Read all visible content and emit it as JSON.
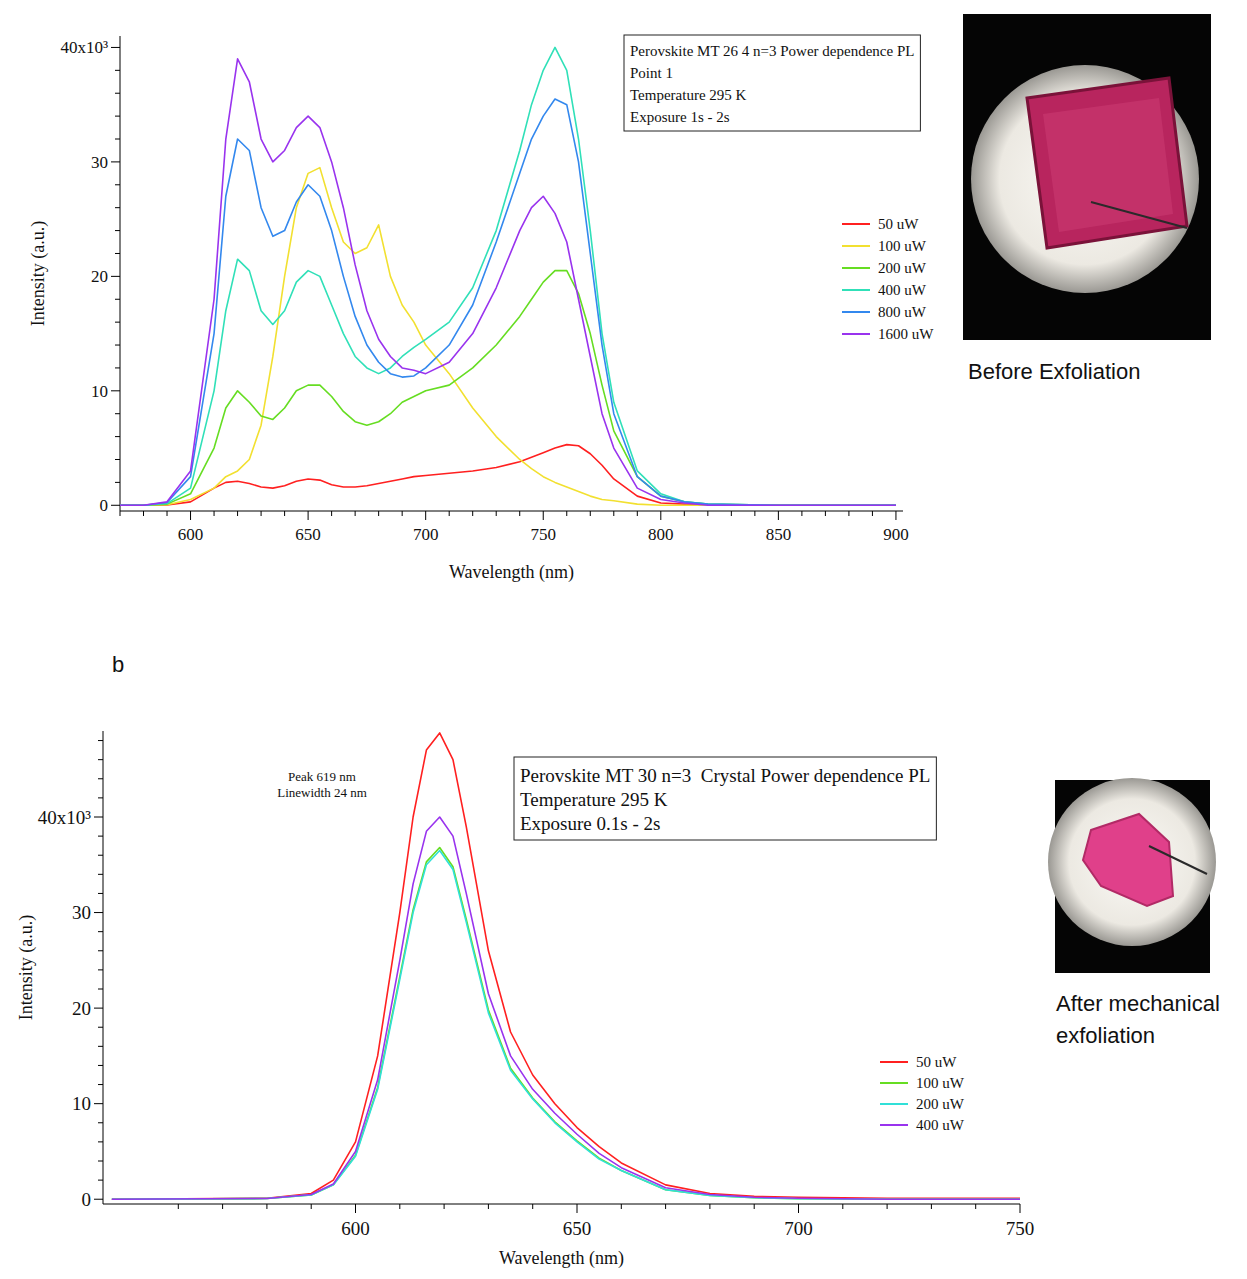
{
  "chart_data": [
    {
      "type": "line",
      "text_box": [
        "Perovskite MT 26 4 n=3 Power dependence PL",
        "Point 1",
        "Temperature 295 K",
        "Exposure 1s - 2s"
      ],
      "x_label": "Wavelength (nm)",
      "y_label": "Intensity (a.u.)",
      "image_caption": "Before Exfoliation",
      "legend": "right",
      "xlim": [
        570,
        903
      ],
      "ylim": [
        -500,
        41000
      ],
      "xticks": [
        600,
        650,
        700,
        750,
        800,
        850,
        900
      ],
      "yticks": [
        0,
        {
          "value": 10000,
          "label": "10"
        },
        {
          "value": 20000,
          "label": "20"
        },
        {
          "value": 30000,
          "label": "30"
        },
        {
          "value": 40000,
          "label": "40x10³"
        }
      ],
      "x": [
        560,
        580,
        590,
        600,
        610,
        615,
        620,
        625,
        630,
        635,
        640,
        645,
        650,
        655,
        660,
        665,
        670,
        675,
        680,
        685,
        690,
        695,
        700,
        710,
        720,
        730,
        740,
        745,
        750,
        755,
        760,
        765,
        770,
        775,
        780,
        790,
        800,
        810,
        820,
        850,
        900
      ],
      "series": [
        {
          "name": "50 uW",
          "color": "#ff2020",
          "values": [
            0,
            0,
            30,
            300,
            1500,
            2000,
            2100,
            1900,
            1600,
            1500,
            1700,
            2100,
            2300,
            2200,
            1800,
            1600,
            1600,
            1700,
            1900,
            2100,
            2300,
            2500,
            2600,
            2800,
            3000,
            3300,
            3800,
            4200,
            4600,
            5000,
            5300,
            5200,
            4500,
            3500,
            2300,
            800,
            200,
            100,
            0,
            0,
            0
          ]
        },
        {
          "name": "100 uW",
          "color": "#f2e030",
          "values": [
            0,
            0,
            50,
            500,
            1500,
            2500,
            3000,
            4000,
            7000,
            13000,
            20000,
            26000,
            29000,
            29500,
            26000,
            23000,
            22000,
            22500,
            24500,
            20000,
            17500,
            16000,
            14000,
            11500,
            8500,
            6000,
            4000,
            3200,
            2500,
            2000,
            1600,
            1200,
            800,
            500,
            400,
            100,
            0,
            0,
            0,
            0,
            0
          ]
        },
        {
          "name": "200 uW",
          "color": "#66dd22",
          "values": [
            0,
            0,
            100,
            1000,
            5000,
            8500,
            10000,
            9000,
            7800,
            7500,
            8500,
            10000,
            10500,
            10500,
            9500,
            8200,
            7300,
            7000,
            7300,
            8000,
            9000,
            9500,
            10000,
            10500,
            12000,
            14000,
            16500,
            18000,
            19500,
            20500,
            20500,
            18500,
            15000,
            10500,
            6500,
            2500,
            800,
            300,
            100,
            0,
            0
          ]
        },
        {
          "name": "400 uW",
          "color": "#30e0b8",
          "values": [
            0,
            0,
            150,
            1500,
            10000,
            17000,
            21500,
            20500,
            17000,
            15800,
            17000,
            19500,
            20500,
            20000,
            17500,
            15000,
            13000,
            12000,
            11500,
            12000,
            13000,
            13800,
            14500,
            16000,
            19000,
            24000,
            31000,
            35000,
            38000,
            40000,
            38000,
            32000,
            24000,
            15000,
            9000,
            3000,
            1000,
            300,
            100,
            0,
            0
          ]
        },
        {
          "name": "800 uW",
          "color": "#3388ee",
          "values": [
            0,
            0,
            250,
            2500,
            15000,
            27000,
            32000,
            31000,
            26000,
            23500,
            24000,
            26500,
            28000,
            27000,
            24000,
            20000,
            16500,
            14000,
            12500,
            11500,
            11200,
            11300,
            12000,
            14000,
            17500,
            23000,
            29000,
            32000,
            34000,
            35500,
            35000,
            30000,
            22000,
            14000,
            8000,
            2500,
            800,
            300,
            100,
            0,
            0
          ]
        },
        {
          "name": "1600 uW",
          "color": "#9933ee",
          "values": [
            0,
            0,
            300,
            3000,
            18000,
            32000,
            39000,
            37000,
            32000,
            30000,
            31000,
            33000,
            34000,
            33000,
            30000,
            26000,
            21000,
            17000,
            14500,
            13000,
            12000,
            11800,
            11500,
            12500,
            15000,
            19000,
            24000,
            26000,
            27000,
            25500,
            23000,
            18000,
            13000,
            8000,
            5000,
            1500,
            500,
            200,
            0,
            0,
            0
          ]
        }
      ]
    },
    {
      "type": "line",
      "panel_label": "b",
      "text_box": [
        "Perovskite MT 30 n=3  Crystal Power dependence PL",
        "Temperature 295 K",
        "Exposure 0.1s - 2s"
      ],
      "annotations": [
        "Peak 619 nm",
        "Linewidth 24 nm"
      ],
      "x_label": "Wavelength (nm)",
      "y_label": "Intensity (a.u.)",
      "image_caption": "After mechanical exfoliation",
      "legend": "right",
      "xlim": [
        543,
        750
      ],
      "ylim": [
        -500,
        49000
      ],
      "xticks": [
        600,
        650,
        700,
        750
      ],
      "yticks": [
        0,
        {
          "value": 10000,
          "label": "10"
        },
        {
          "value": 20000,
          "label": "20"
        },
        {
          "value": 30000,
          "label": "30"
        },
        {
          "value": 40000,
          "label": "40x10³"
        }
      ],
      "x": [
        545,
        580,
        590,
        595,
        600,
        605,
        610,
        613,
        616,
        619,
        622,
        625,
        630,
        635,
        640,
        645,
        650,
        655,
        660,
        670,
        680,
        690,
        700,
        720,
        750
      ],
      "series": [
        {
          "name": "50 uW",
          "color": "#ff2020",
          "values": [
            0,
            100,
            600,
            2000,
            6000,
            15000,
            30000,
            40000,
            47000,
            48800,
            46000,
            39000,
            26000,
            17500,
            13000,
            10000,
            7500,
            5500,
            3800,
            1500,
            600,
            300,
            200,
            100,
            100
          ]
        },
        {
          "name": "100 uW",
          "color": "#66dd22",
          "values": [
            0,
            70,
            450,
            1500,
            4600,
            11700,
            23300,
            30300,
            35300,
            36800,
            34800,
            29300,
            19800,
            13700,
            10600,
            8100,
            6100,
            4300,
            3000,
            1000,
            400,
            150,
            50,
            0,
            0
          ]
        },
        {
          "name": "200 uW",
          "color": "#30e0d8",
          "values": [
            0,
            70,
            450,
            1500,
            4500,
            11500,
            23000,
            30000,
            35000,
            36500,
            34500,
            29000,
            19500,
            13500,
            10500,
            8000,
            6000,
            4200,
            3000,
            1000,
            400,
            150,
            50,
            0,
            0
          ]
        },
        {
          "name": "400 uW",
          "color": "#9933ee",
          "values": [
            0,
            80,
            500,
            1600,
            5000,
            12500,
            25000,
            33000,
            38500,
            40000,
            38000,
            32000,
            21500,
            15000,
            11500,
            9000,
            6800,
            4800,
            3300,
            1200,
            500,
            200,
            100,
            0,
            0
          ]
        }
      ]
    }
  ]
}
